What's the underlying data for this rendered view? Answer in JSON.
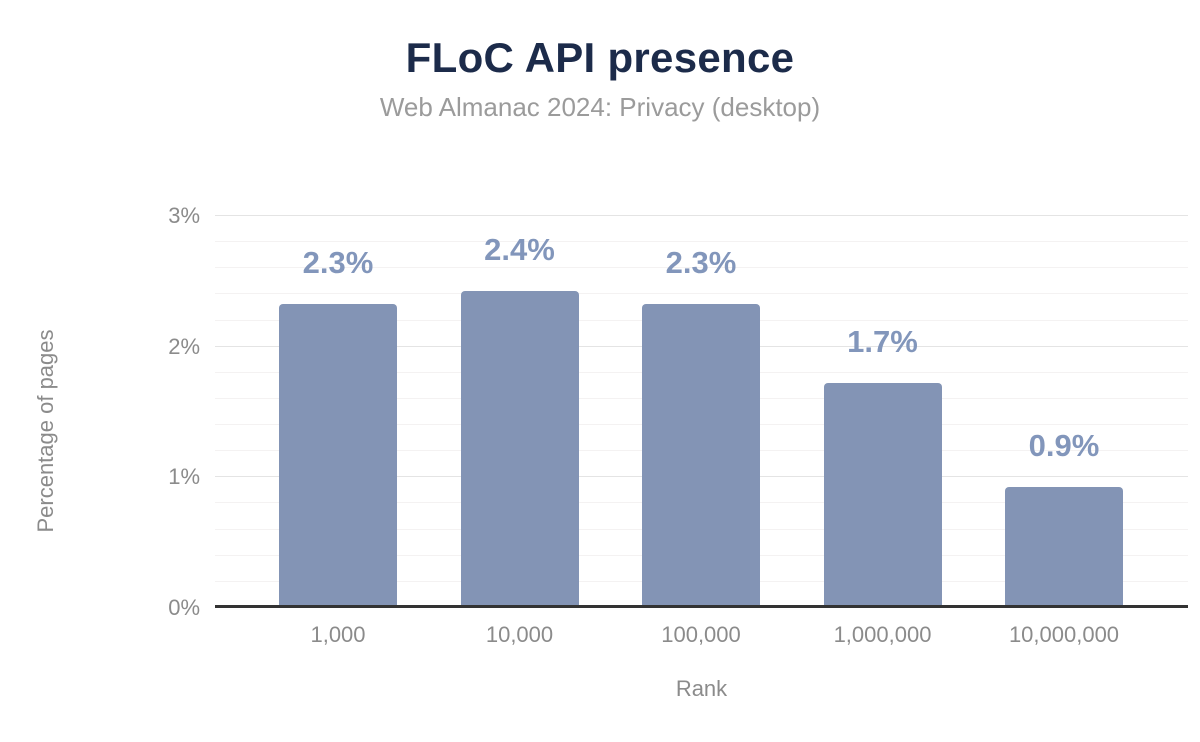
{
  "chart_data": {
    "type": "bar",
    "title": "FLoC API presence",
    "subtitle": "Web Almanac 2024: Privacy (desktop)",
    "xlabel": "Rank",
    "ylabel": "Percentage of pages",
    "categories": [
      "1,000",
      "10,000",
      "100,000",
      "1,000,000",
      "10,000,000"
    ],
    "values": [
      2.3,
      2.4,
      2.3,
      1.7,
      0.9
    ],
    "value_labels": [
      "2.3%",
      "2.4%",
      "2.3%",
      "1.7%",
      "0.9%"
    ],
    "ylim": [
      0,
      3
    ],
    "yticks": [
      0,
      1,
      2,
      3
    ],
    "ytick_labels": [
      "0%",
      "1%",
      "2%",
      "3%"
    ],
    "minor_grid_step": 0.2,
    "grid": "major-and-minor-horizontal",
    "legend": "none",
    "colors": {
      "bar": "#8394b5",
      "data_label": "#8296bb",
      "title": "#1c2b4a",
      "subtitle": "#9b9b9b",
      "axis_text": "#8b8b8b",
      "axis_line": "#333333",
      "major_grid": "#e4e4e4",
      "minor_grid": "#f4f2f2"
    }
  }
}
